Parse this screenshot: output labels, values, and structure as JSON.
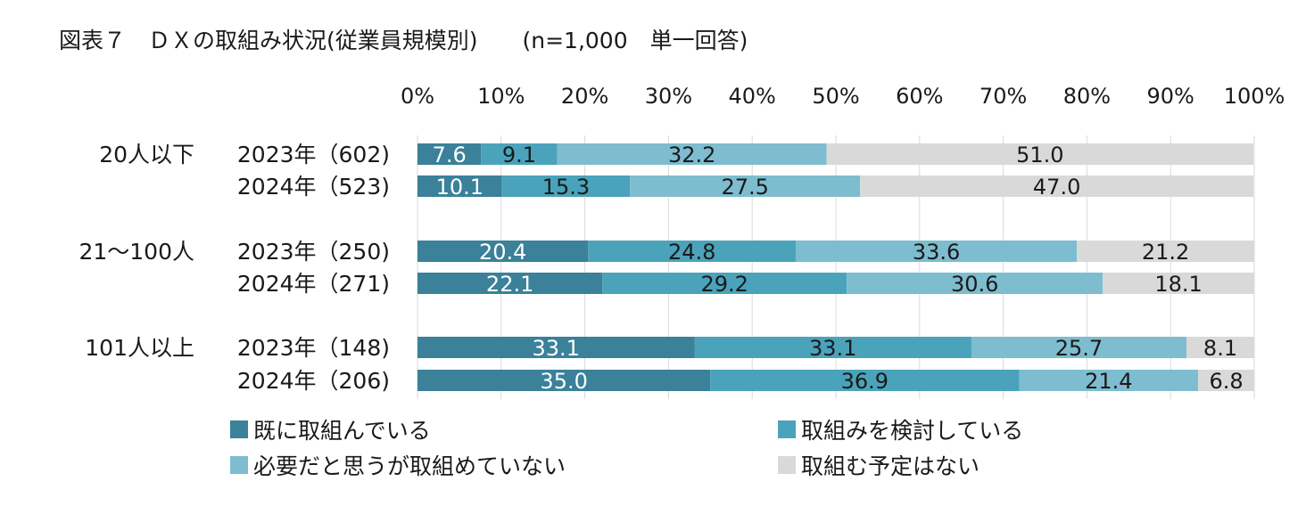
{
  "title": "図表７　ＤＸの取組み状況(従業員規模別)　　(n=1,000　単一回答)",
  "chart_data": {
    "type": "bar",
    "orientation": "horizontal",
    "stacked": true,
    "x_ticks": [
      "0%",
      "10%",
      "20%",
      "30%",
      "40%",
      "50%",
      "60%",
      "70%",
      "80%",
      "90%",
      "100%"
    ],
    "xlim": [
      0,
      100
    ],
    "groups": [
      {
        "label": "20人以下",
        "rows": [
          {
            "label": "2023年（602)",
            "values": [
              7.6,
              9.1,
              32.2,
              51.0
            ],
            "texts": [
              "7.6",
              "9.1",
              "32.2",
              "51.0"
            ]
          },
          {
            "label": "2024年（523)",
            "values": [
              10.1,
              15.3,
              27.5,
              47.0
            ],
            "texts": [
              "10.1",
              "15.3",
              "27.5",
              "47.0"
            ]
          }
        ]
      },
      {
        "label": "21～100人",
        "rows": [
          {
            "label": "2023年（250)",
            "values": [
              20.4,
              24.8,
              33.6,
              21.2
            ],
            "texts": [
              "20.4",
              "24.8",
              "33.6",
              "21.2"
            ]
          },
          {
            "label": "2024年（271)",
            "values": [
              22.1,
              29.2,
              30.6,
              18.1
            ],
            "texts": [
              "22.1",
              "29.2",
              "30.6",
              "18.1"
            ]
          }
        ]
      },
      {
        "label": "101人以上",
        "rows": [
          {
            "label": "2023年（148)",
            "values": [
              33.1,
              33.1,
              25.7,
              8.1
            ],
            "texts": [
              "33.1",
              "33.1",
              "25.7",
              "8.1"
            ]
          },
          {
            "label": "2024年（206)",
            "values": [
              35.0,
              36.9,
              21.4,
              6.8
            ],
            "texts": [
              "35.0",
              "36.9",
              "21.4",
              "6.8"
            ]
          }
        ]
      }
    ],
    "series": [
      {
        "name": "既に取組んでいる",
        "color": "#3a8199",
        "label_color": "#ffffff"
      },
      {
        "name": "取組みを検討している",
        "color": "#4aa3bb",
        "label_color": "#1a1a1a"
      },
      {
        "name": "必要だと思うが取組めていない",
        "color": "#7dbdcf",
        "label_color": "#1a1a1a"
      },
      {
        "name": "取組む予定はない",
        "color": "#d9d9d9",
        "label_color": "#1a1a1a"
      }
    ]
  }
}
